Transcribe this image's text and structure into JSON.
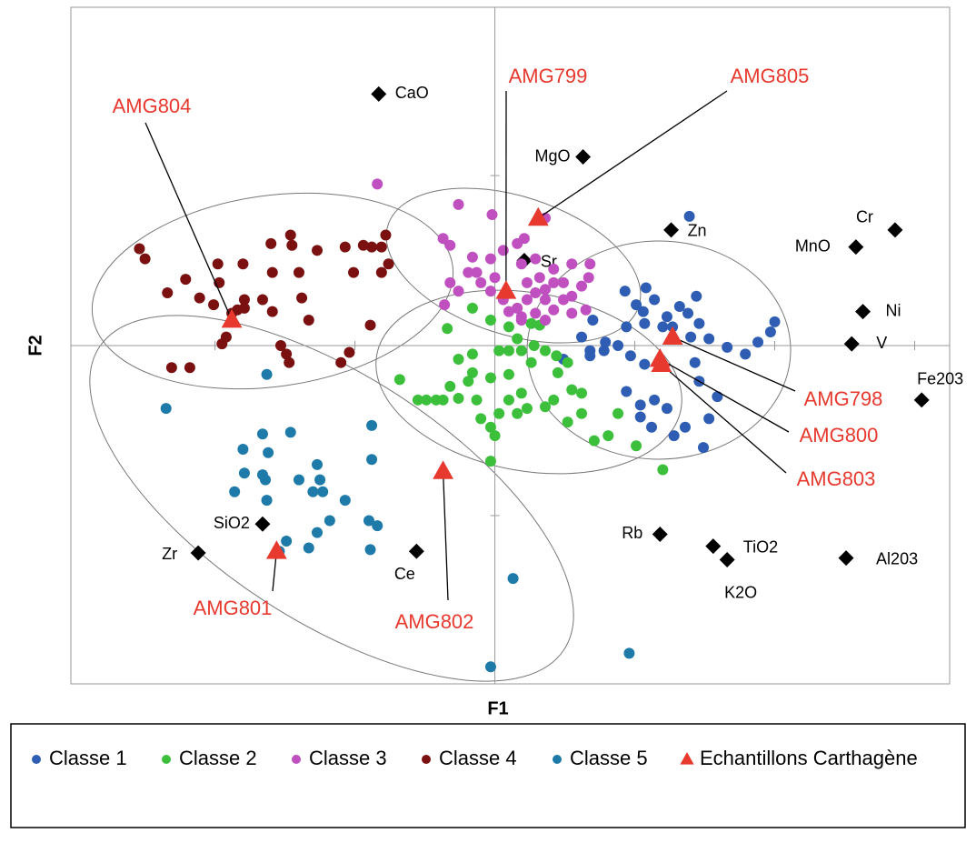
{
  "chart_data": {
    "type": "scatter",
    "xlabel": "F1",
    "ylabel": "F2",
    "xlim": [
      -3.03,
      3.25
    ],
    "ylim": [
      -1.99,
      1.99
    ],
    "xticks": [
      -2,
      -1,
      0,
      1,
      2,
      3
    ],
    "yticks": [
      -1,
      0,
      1
    ],
    "series": [
      {
        "name": "Classe 1",
        "color": "#2e5db3",
        "marker": "circle",
        "x": [
          1.39,
          1.08,
          0.93,
          1.14,
          1.44,
          1.32,
          1.23,
          1.38,
          1.46,
          1.06,
          1.07,
          0.94,
          2.0,
          1.97,
          1.88,
          1.79,
          1.66,
          1.53,
          1.4,
          1.27,
          0.79,
          0.68,
          0.62,
          0.88,
          0.78,
          0.97,
          1.07,
          1.43,
          0.68,
          0.49,
          0.94,
          1.04,
          1.14,
          1.23,
          1.59,
          1.53,
          1.49,
          1.36,
          1.28,
          1.12,
          1.04,
          1.46,
          1.01,
          0.7,
          1.2
        ],
        "y": [
          0.76,
          0.34,
          0.32,
          0.27,
          0.29,
          0.23,
          0.17,
          0.19,
          0.13,
          0.2,
          0.13,
          0.11,
          0.14,
          0.08,
          0.02,
          -0.05,
          -0.01,
          0.04,
          0.05,
          0.11,
          0.02,
          -0.03,
          0.05,
          0.0,
          -0.03,
          -0.06,
          -0.11,
          -0.1,
          -0.06,
          -0.08,
          -0.27,
          -0.35,
          -0.32,
          -0.37,
          -0.3,
          -0.43,
          -0.6,
          -0.48,
          -0.53,
          -0.48,
          -0.42,
          -0.21,
          0.24,
          0.15,
          0.11
        ]
      },
      {
        "name": "Classe 2",
        "color": "#3cc03c",
        "marker": "circle",
        "x": [
          -0.34,
          -0.16,
          -0.03,
          0.1,
          0.26,
          0.32,
          0.16,
          0.28,
          0.36,
          0.44,
          0.52,
          0.45,
          0.26,
          0.19,
          0.1,
          0.03,
          -0.16,
          -0.26,
          0.1,
          -0.03,
          -0.16,
          -0.32,
          -0.19,
          -0.42,
          -0.55,
          -0.68,
          -0.49,
          -0.37,
          -0.26,
          -0.13,
          0.1,
          0.19,
          0.23,
          0.36,
          0.42,
          0.55,
          0.62,
          0.52,
          0.62,
          0.71,
          0.81,
          0.88,
          1.01,
          1.2,
          -0.03,
          0.0,
          -0.03,
          0.03,
          -0.1,
          0.16
        ],
        "y": [
          0.1,
          0.22,
          0.15,
          0.11,
          0.13,
          0.12,
          0.04,
          0.0,
          -0.03,
          -0.06,
          -0.1,
          -0.16,
          -0.1,
          -0.03,
          -0.03,
          -0.03,
          -0.05,
          -0.08,
          -0.17,
          -0.19,
          -0.16,
          -0.24,
          -0.21,
          -0.32,
          -0.32,
          -0.2,
          -0.32,
          -0.32,
          -0.31,
          -0.32,
          -0.32,
          -0.28,
          -0.37,
          -0.36,
          -0.32,
          -0.26,
          -0.28,
          -0.45,
          -0.4,
          -0.56,
          -0.53,
          -0.4,
          -0.59,
          -0.73,
          -0.48,
          -0.53,
          -0.68,
          -0.4,
          -0.43,
          -0.4
        ]
      },
      {
        "name": "Classe 3",
        "color": "#c04fc0",
        "marker": "circle",
        "x": [
          -0.84,
          -0.26,
          -0.02,
          0.21,
          0.16,
          0.36,
          -0.37,
          -0.32,
          -0.16,
          -0.03,
          0.06,
          0.19,
          0.29,
          0.42,
          0.55,
          0.68,
          0.67,
          0.42,
          0.36,
          0.29,
          0.23,
          0.16,
          0.1,
          0.19,
          0.29,
          0.42,
          0.49,
          0.55,
          0.62,
          0.49,
          0.36,
          0.0,
          -0.1,
          -0.13,
          -0.19,
          -0.32,
          -0.36,
          -0.26,
          -0.03,
          0.06,
          0.23,
          0.32,
          0.55,
          0.65,
          0.19,
          0.36
        ],
        "y": [
          0.95,
          0.83,
          0.77,
          0.63,
          0.6,
          0.75,
          0.63,
          0.59,
          0.52,
          0.51,
          0.56,
          0.48,
          0.51,
          0.45,
          0.48,
          0.48,
          0.4,
          0.37,
          0.33,
          0.31,
          0.27,
          0.22,
          0.2,
          0.17,
          0.19,
          0.21,
          0.27,
          0.29,
          0.35,
          0.37,
          0.27,
          0.4,
          0.37,
          0.43,
          0.43,
          0.37,
          0.24,
          0.32,
          0.32,
          0.27,
          0.37,
          0.4,
          0.19,
          0.21,
          0.15,
          0.15
        ]
      },
      {
        "name": "Classe 4",
        "color": "#7a1010",
        "marker": "circle",
        "x": [
          -2.54,
          -2.5,
          -2.21,
          -2.34,
          -2.11,
          -1.97,
          -1.98,
          -1.8,
          -1.6,
          -1.46,
          -1.45,
          -1.59,
          -1.66,
          -1.59,
          -1.79,
          -1.88,
          -1.92,
          -1.95,
          -1.84,
          -2.01,
          -2.31,
          -2.18,
          -1.53,
          -1.47,
          -1.49,
          -1.33,
          -1.04,
          -1.1,
          -0.89,
          -1.07,
          -0.94,
          -0.88,
          -0.81,
          -0.78,
          -0.76,
          -0.81,
          -1.01,
          -1.38,
          -1.4,
          -1.79,
          -1.27
        ],
        "y": [
          0.57,
          0.51,
          0.39,
          0.31,
          0.28,
          0.37,
          0.48,
          0.48,
          0.6,
          0.65,
          0.59,
          0.43,
          0.27,
          0.2,
          0.22,
          0.19,
          0.05,
          0.01,
          0.21,
          0.24,
          -0.13,
          -0.13,
          0.0,
          -0.1,
          -0.05,
          0.15,
          -0.04,
          -0.1,
          0.12,
          0.58,
          0.59,
          0.58,
          0.58,
          0.65,
          0.48,
          0.43,
          0.43,
          0.28,
          0.43,
          0.27,
          0.56
        ]
      },
      {
        "name": "Classe 5",
        "color": "#1e7aa8",
        "marker": "circle",
        "x": [
          -2.35,
          -1.63,
          -1.66,
          -1.46,
          -0.88,
          -1.8,
          -1.62,
          -1.86,
          -1.66,
          -1.64,
          -1.63,
          -1.4,
          -1.27,
          -1.25,
          -1.3,
          -1.23,
          -1.07,
          -0.88,
          -0.9,
          -0.84,
          -1.18,
          -1.27,
          -1.33,
          -1.49,
          -1.54,
          -0.89,
          0.13,
          0.96,
          -0.03,
          -1.79
        ],
        "y": [
          -0.37,
          -0.17,
          -0.52,
          -0.51,
          -0.47,
          -0.61,
          -0.63,
          -0.86,
          -0.76,
          -0.79,
          -0.91,
          -0.79,
          -0.7,
          -0.79,
          -0.86,
          -0.86,
          -0.91,
          -0.67,
          -1.03,
          -1.06,
          -1.03,
          -1.1,
          -1.19,
          -1.15,
          -1.21,
          -1.2,
          -1.37,
          -1.81,
          -1.89,
          -0.75
        ]
      },
      {
        "name": "Echantillons Carthagène",
        "color": "#e8392f",
        "marker": "triangle",
        "labels": [
          "AMG804",
          "AMG799",
          "AMG805",
          "AMG798",
          "AMG800",
          "AMG803",
          "AMG802",
          "AMG801"
        ],
        "x": [
          -1.88,
          0.08,
          0.31,
          1.27,
          1.18,
          1.19,
          -0.37,
          -1.56
        ],
        "y": [
          0.15,
          0.32,
          0.75,
          0.05,
          -0.08,
          -0.11,
          -0.74,
          -1.21
        ]
      }
    ],
    "variables": {
      "color": "#000000",
      "marker": "diamond",
      "labels": [
        "CaO",
        "MgO",
        "Zn",
        "Sr",
        "Cr",
        "MnO",
        "Ni",
        "V",
        "Fe203",
        "Rb",
        "TiO2",
        "K2O",
        "Al203",
        "SiO2",
        "Zr",
        "Ce"
      ],
      "x": [
        -0.83,
        0.63,
        1.26,
        0.21,
        2.86,
        2.58,
        2.63,
        2.55,
        3.05,
        1.18,
        1.56,
        1.66,
        2.51,
        -1.66,
        -2.12,
        -0.56
      ],
      "y": [
        1.48,
        1.11,
        0.68,
        0.5,
        0.68,
        0.58,
        0.2,
        0.01,
        -0.32,
        -1.11,
        -1.18,
        -1.26,
        -1.25,
        -1.05,
        -1.22,
        -1.21
      ]
    }
  }
}
